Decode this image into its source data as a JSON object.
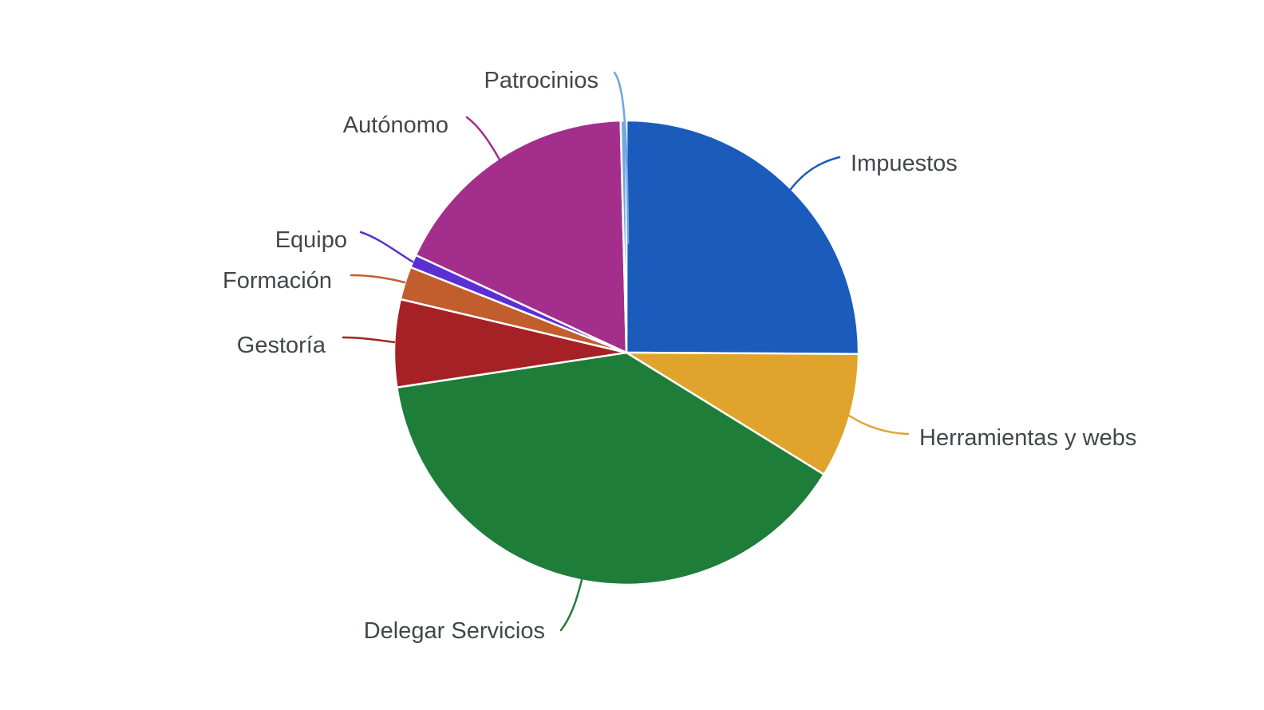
{
  "chart_data": {
    "type": "pie",
    "title": "",
    "legend_position": "outside-labels-with-leader-lines",
    "direction": "clockwise",
    "start_angle_deg": 0,
    "background": "#ffffff",
    "label_color": "#43464a",
    "slices": [
      {
        "label": "Impuestos",
        "value_pct": 25.1,
        "color": "#1a5bbc"
      },
      {
        "label": "Herramientas y webs",
        "value_pct": 8.7,
        "color": "#e0a42c"
      },
      {
        "label": "Delegar Servicios",
        "value_pct": 38.8,
        "color": "#1f7d3a"
      },
      {
        "label": "Gestoría",
        "value_pct": 6.1,
        "color": "#a62125"
      },
      {
        "label": "Formación",
        "value_pct": 2.3,
        "color": "#c25e2d"
      },
      {
        "label": "Equipo",
        "value_pct": 0.9,
        "color": "#5c2fd4"
      },
      {
        "label": "Autónomo",
        "value_pct": 17.7,
        "color": "#a32e8c"
      },
      {
        "label": "Patrocinios",
        "value_pct": 0.4,
        "color": "#70a8e4"
      }
    ]
  }
}
